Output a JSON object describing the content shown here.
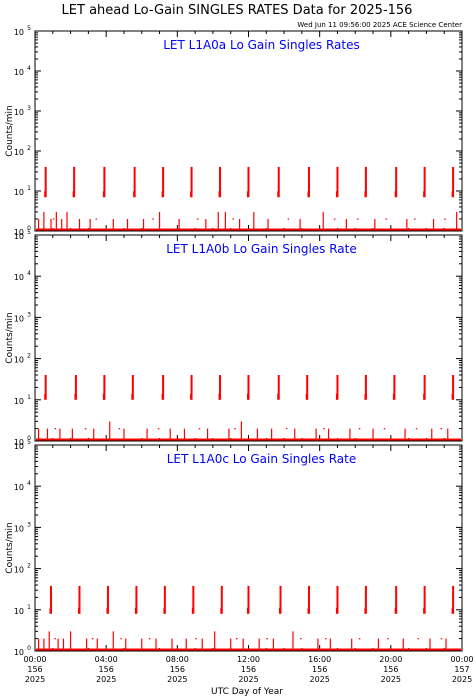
{
  "header": {
    "title": "LET ahead Lo-Gain SINGLES RATES Data for 2025-156",
    "timestamp": "Wed Jun 11 09:56:00 2025 ACE Science Center"
  },
  "colors": {
    "panel_title": "#0000ff",
    "data": "#ff0000",
    "axes": "#000000",
    "background": "#ffffff"
  },
  "axes": {
    "ylabel": "Counts/min",
    "xlabel": "UTC Day of Year",
    "y_tick_labels": [
      {
        "base": "10",
        "exp": "0"
      },
      {
        "base": "10",
        "exp": "1"
      },
      {
        "base": "10",
        "exp": "2"
      },
      {
        "base": "10",
        "exp": "3"
      },
      {
        "base": "10",
        "exp": "4"
      },
      {
        "base": "10",
        "exp": "5"
      }
    ],
    "x_tick_labels": [
      {
        "time": "00:00",
        "day": "156",
        "year": "2025"
      },
      {
        "time": "04:00",
        "day": "156",
        "year": "2025"
      },
      {
        "time": "08:00",
        "day": "156",
        "year": "2025"
      },
      {
        "time": "12:00",
        "day": "156",
        "year": "2025"
      },
      {
        "time": "16:00",
        "day": "156",
        "year": "2025"
      },
      {
        "time": "20:00",
        "day": "156",
        "year": "2025"
      },
      {
        "time": "00:00",
        "day": "157",
        "year": "2025"
      }
    ]
  },
  "chart_data": [
    {
      "type": "scatter",
      "title": "LET L1A0a Lo Gain Singles Rates",
      "xlabel": "UTC Day of Year",
      "ylabel": "Counts/min",
      "xlim": [
        0,
        24
      ],
      "ylim": [
        1,
        100000
      ],
      "yscale": "log",
      "x_unit": "hours UTC, day 2025-156",
      "bursts": [
        {
          "x": 0.6,
          "low": 7,
          "high": 40
        },
        {
          "x": 2.2,
          "low": 7,
          "high": 40
        },
        {
          "x": 3.9,
          "low": 7,
          "high": 40
        },
        {
          "x": 5.6,
          "low": 7,
          "high": 40
        },
        {
          "x": 7.2,
          "low": 7,
          "high": 40
        },
        {
          "x": 8.8,
          "low": 7,
          "high": 40
        },
        {
          "x": 10.4,
          "low": 7,
          "high": 40
        },
        {
          "x": 12.0,
          "low": 7,
          "high": 40
        },
        {
          "x": 13.7,
          "low": 7,
          "high": 40
        },
        {
          "x": 15.4,
          "low": 7,
          "high": 40
        },
        {
          "x": 17.0,
          "low": 7,
          "high": 40
        },
        {
          "x": 18.6,
          "low": 7,
          "high": 40
        },
        {
          "x": 20.3,
          "low": 7,
          "high": 40
        },
        {
          "x": 21.9,
          "low": 7,
          "high": 40
        },
        {
          "x": 23.5,
          "low": 7,
          "high": 40
        }
      ],
      "spikes": [
        {
          "x": 0.2,
          "y": 2
        },
        {
          "x": 0.5,
          "y": 3
        },
        {
          "x": 0.9,
          "y": 2
        },
        {
          "x": 1.2,
          "y": 3
        },
        {
          "x": 1.5,
          "y": 2
        },
        {
          "x": 1.8,
          "y": 3
        },
        {
          "x": 2.5,
          "y": 2
        },
        {
          "x": 3.1,
          "y": 2
        },
        {
          "x": 4.4,
          "y": 2
        },
        {
          "x": 5.2,
          "y": 2
        },
        {
          "x": 6.1,
          "y": 2
        },
        {
          "x": 7.0,
          "y": 3
        },
        {
          "x": 8.1,
          "y": 2
        },
        {
          "x": 9.6,
          "y": 2
        },
        {
          "x": 10.3,
          "y": 3
        },
        {
          "x": 10.7,
          "y": 3
        },
        {
          "x": 11.5,
          "y": 2
        },
        {
          "x": 12.3,
          "y": 3
        },
        {
          "x": 13.1,
          "y": 2
        },
        {
          "x": 14.9,
          "y": 2
        },
        {
          "x": 16.2,
          "y": 3
        },
        {
          "x": 17.5,
          "y": 2
        },
        {
          "x": 19.1,
          "y": 2
        },
        {
          "x": 20.9,
          "y": 2
        },
        {
          "x": 22.4,
          "y": 2
        },
        {
          "x": 23.7,
          "y": 3
        }
      ],
      "baseline_dots": [
        {
          "x": 1.0,
          "y": 2
        },
        {
          "x": 3.4,
          "y": 2
        },
        {
          "x": 6.6,
          "y": 2
        },
        {
          "x": 9.1,
          "y": 2
        },
        {
          "x": 11.1,
          "y": 2
        },
        {
          "x": 14.2,
          "y": 2
        },
        {
          "x": 16.8,
          "y": 2
        },
        {
          "x": 18.1,
          "y": 2
        },
        {
          "x": 19.7,
          "y": 2
        },
        {
          "x": 21.3,
          "y": 2
        },
        {
          "x": 23.0,
          "y": 2
        }
      ]
    },
    {
      "type": "scatter",
      "title": "LET L1A0b Lo Gain Singles Rate",
      "xlabel": "UTC Day of Year",
      "ylabel": "Counts/min",
      "xlim": [
        0,
        24
      ],
      "ylim": [
        1,
        100000
      ],
      "yscale": "log",
      "x_unit": "hours UTC, day 2025-156",
      "bursts": [
        {
          "x": 0.6,
          "low": 10,
          "high": 40
        },
        {
          "x": 2.3,
          "low": 10,
          "high": 40
        },
        {
          "x": 3.9,
          "low": 10,
          "high": 40
        },
        {
          "x": 5.5,
          "low": 10,
          "high": 40
        },
        {
          "x": 7.2,
          "low": 10,
          "high": 40
        },
        {
          "x": 8.8,
          "low": 10,
          "high": 40
        },
        {
          "x": 10.4,
          "low": 10,
          "high": 40
        },
        {
          "x": 12.0,
          "low": 10,
          "high": 40
        },
        {
          "x": 13.7,
          "low": 10,
          "high": 40
        },
        {
          "x": 15.3,
          "low": 10,
          "high": 40
        },
        {
          "x": 17.0,
          "low": 10,
          "high": 40
        },
        {
          "x": 18.6,
          "low": 10,
          "high": 40
        },
        {
          "x": 20.2,
          "low": 10,
          "high": 40
        },
        {
          "x": 21.9,
          "low": 10,
          "high": 40
        },
        {
          "x": 23.5,
          "low": 10,
          "high": 40
        }
      ],
      "spikes": [
        {
          "x": 0.2,
          "y": 2
        },
        {
          "x": 0.7,
          "y": 2
        },
        {
          "x": 1.4,
          "y": 2
        },
        {
          "x": 2.1,
          "y": 2
        },
        {
          "x": 3.3,
          "y": 2
        },
        {
          "x": 4.2,
          "y": 3
        },
        {
          "x": 5.0,
          "y": 2
        },
        {
          "x": 6.3,
          "y": 2
        },
        {
          "x": 7.6,
          "y": 2
        },
        {
          "x": 8.4,
          "y": 2
        },
        {
          "x": 9.7,
          "y": 2
        },
        {
          "x": 10.9,
          "y": 2
        },
        {
          "x": 11.6,
          "y": 3
        },
        {
          "x": 12.5,
          "y": 2
        },
        {
          "x": 13.3,
          "y": 2
        },
        {
          "x": 14.6,
          "y": 2
        },
        {
          "x": 15.8,
          "y": 2
        },
        {
          "x": 16.5,
          "y": 2
        },
        {
          "x": 17.7,
          "y": 2
        },
        {
          "x": 19.0,
          "y": 2
        },
        {
          "x": 20.8,
          "y": 2
        },
        {
          "x": 22.3,
          "y": 2
        },
        {
          "x": 23.2,
          "y": 2
        }
      ],
      "baseline_dots": [
        {
          "x": 1.1,
          "y": 2
        },
        {
          "x": 2.8,
          "y": 2
        },
        {
          "x": 4.7,
          "y": 2
        },
        {
          "x": 6.9,
          "y": 2
        },
        {
          "x": 9.2,
          "y": 2
        },
        {
          "x": 11.2,
          "y": 2
        },
        {
          "x": 14.1,
          "y": 2
        },
        {
          "x": 16.2,
          "y": 2
        },
        {
          "x": 18.2,
          "y": 2
        },
        {
          "x": 19.6,
          "y": 2
        },
        {
          "x": 21.4,
          "y": 2
        },
        {
          "x": 22.8,
          "y": 2
        }
      ]
    },
    {
      "type": "scatter",
      "title": "LET L1A0c Lo Gain Singles Rate",
      "xlabel": "UTC Day of Year",
      "ylabel": "Counts/min",
      "xlim": [
        0,
        24
      ],
      "ylim": [
        1,
        100000
      ],
      "yscale": "log",
      "x_unit": "hours UTC, day 2025-156",
      "bursts": [
        {
          "x": 0.9,
          "low": 8,
          "high": 38
        },
        {
          "x": 2.5,
          "low": 8,
          "high": 38
        },
        {
          "x": 4.1,
          "low": 8,
          "high": 38
        },
        {
          "x": 5.7,
          "low": 8,
          "high": 38
        },
        {
          "x": 7.3,
          "low": 8,
          "high": 38
        },
        {
          "x": 8.9,
          "low": 8,
          "high": 38
        },
        {
          "x": 10.5,
          "low": 8,
          "high": 38
        },
        {
          "x": 12.0,
          "low": 8,
          "high": 38
        },
        {
          "x": 13.8,
          "low": 8,
          "high": 38
        },
        {
          "x": 15.4,
          "low": 8,
          "high": 38
        },
        {
          "x": 17.0,
          "low": 8,
          "high": 38
        },
        {
          "x": 18.6,
          "low": 8,
          "high": 38
        },
        {
          "x": 20.3,
          "low": 8,
          "high": 38
        },
        {
          "x": 21.9,
          "low": 8,
          "high": 38
        },
        {
          "x": 23.5,
          "low": 8,
          "high": 38
        }
      ],
      "spikes": [
        {
          "x": 0.2,
          "y": 2
        },
        {
          "x": 0.5,
          "y": 2
        },
        {
          "x": 0.8,
          "y": 3
        },
        {
          "x": 1.3,
          "y": 2
        },
        {
          "x": 1.6,
          "y": 2
        },
        {
          "x": 2.0,
          "y": 3
        },
        {
          "x": 2.9,
          "y": 2
        },
        {
          "x": 3.5,
          "y": 2
        },
        {
          "x": 4.4,
          "y": 3
        },
        {
          "x": 5.1,
          "y": 2
        },
        {
          "x": 6.0,
          "y": 2
        },
        {
          "x": 6.8,
          "y": 2
        },
        {
          "x": 7.7,
          "y": 2
        },
        {
          "x": 8.5,
          "y": 2
        },
        {
          "x": 9.4,
          "y": 2
        },
        {
          "x": 10.1,
          "y": 3
        },
        {
          "x": 11.0,
          "y": 2
        },
        {
          "x": 11.7,
          "y": 2
        },
        {
          "x": 12.6,
          "y": 2
        },
        {
          "x": 13.4,
          "y": 2
        },
        {
          "x": 14.5,
          "y": 3
        },
        {
          "x": 15.9,
          "y": 2
        },
        {
          "x": 16.6,
          "y": 2
        },
        {
          "x": 17.8,
          "y": 2
        },
        {
          "x": 19.3,
          "y": 2
        },
        {
          "x": 20.7,
          "y": 2
        },
        {
          "x": 22.2,
          "y": 2
        },
        {
          "x": 23.1,
          "y": 2
        }
      ],
      "baseline_dots": [
        {
          "x": 1.1,
          "y": 2
        },
        {
          "x": 3.2,
          "y": 2
        },
        {
          "x": 4.8,
          "y": 2
        },
        {
          "x": 6.4,
          "y": 2
        },
        {
          "x": 9.0,
          "y": 2
        },
        {
          "x": 11.3,
          "y": 2
        },
        {
          "x": 13.0,
          "y": 2
        },
        {
          "x": 14.9,
          "y": 2
        },
        {
          "x": 16.3,
          "y": 2
        },
        {
          "x": 18.2,
          "y": 2
        },
        {
          "x": 19.8,
          "y": 2
        },
        {
          "x": 21.5,
          "y": 2
        },
        {
          "x": 22.8,
          "y": 2
        }
      ]
    }
  ]
}
